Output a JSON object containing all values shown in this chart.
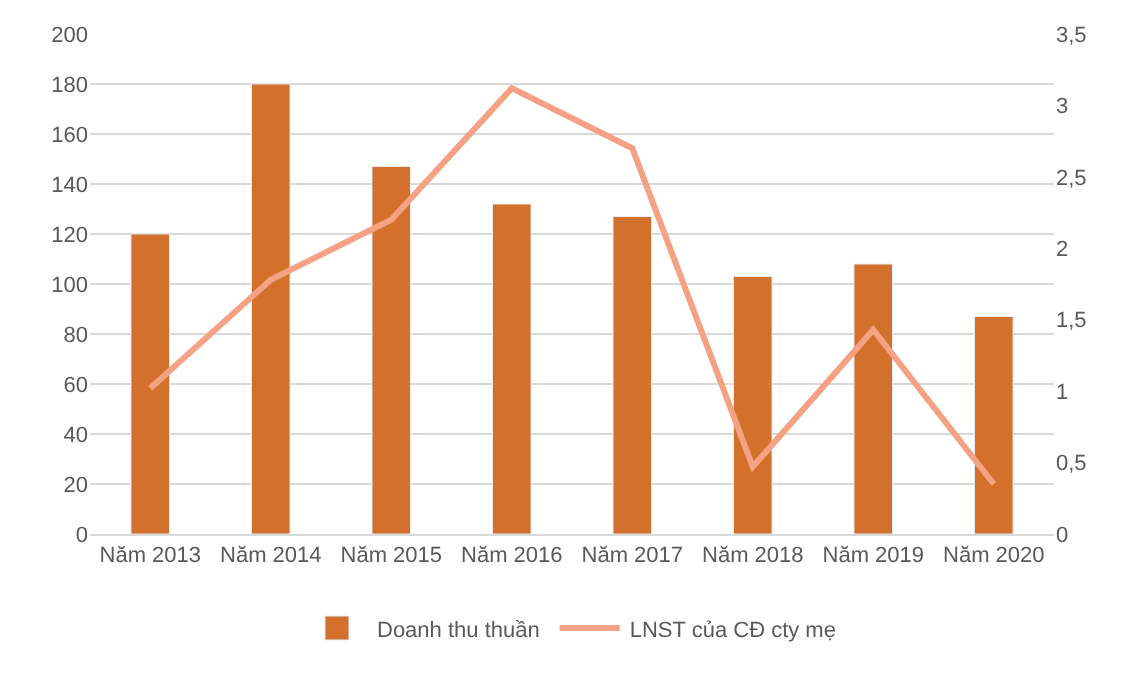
{
  "chart_data": {
    "type": "bar",
    "categories": [
      "Năm 2013",
      "Năm 2014",
      "Năm 2015",
      "Năm 2016",
      "Năm 2017",
      "Năm 2018",
      "Năm 2019",
      "Năm 2020"
    ],
    "series": [
      {
        "name": "Doanh thu thuần",
        "color": "#d2702c",
        "values": [
          120,
          180,
          147,
          132,
          127,
          103,
          108,
          87
        ]
      },
      {
        "name": "LNST của CĐ cty mẹ",
        "color": "#f4a283",
        "type": "line",
        "axis": "y2",
        "values": [
          1.02,
          1.78,
          2.2,
          3.12,
          2.7,
          0.47,
          1.43,
          0.35
        ]
      }
    ],
    "ylim": [
      0,
      200
    ],
    "yticks": [
      0,
      20,
      40,
      60,
      80,
      100,
      120,
      140,
      160,
      180,
      200
    ],
    "y2lim": [
      0,
      3.5
    ],
    "y2ticks": [
      0,
      {
        "value": 0.5,
        "label": "0,5"
      },
      1,
      {
        "value": 1.5,
        "label": "1,5"
      },
      2,
      {
        "value": 2.5,
        "label": "2,5"
      },
      3,
      {
        "value": 3.5,
        "label": "3,5"
      }
    ],
    "grid": "y",
    "legend": "bottom",
    "marker": "none",
    "line_style": "solid"
  }
}
